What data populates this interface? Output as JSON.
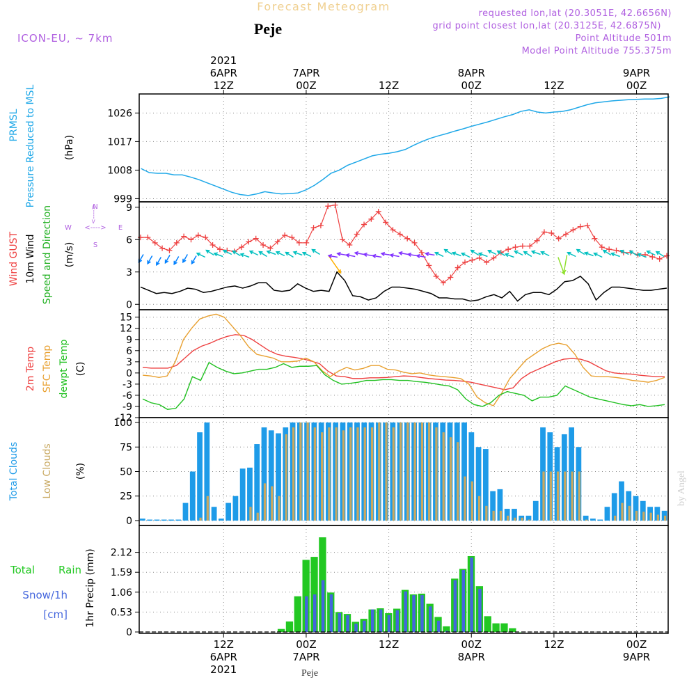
{
  "header": {
    "chart_title": "Forecast Meteogram",
    "location": "Peje",
    "model": "ICON-EU, ~ 7km",
    "requested_point": "requested lon,lat (20.3051E, 42.6656N)",
    "grid_point": "grid point closest lon,lat (20.3125E, 42.6875N)",
    "point_altitude": "Point Altitude 501m",
    "model_point_altitude": "Model Point Altitude 755.375m",
    "footer_location": "Peje",
    "credit": "by Angel"
  },
  "colors": {
    "pressure": "#1fa8e8",
    "gust": "#ee4040",
    "wind": "#000000",
    "wind_dir": "#20b020",
    "temp": "#ee4040",
    "sfc_temp": "#e8a030",
    "dewpt": "#20c020",
    "total_clouds": "#1e9be8",
    "low_clouds": "#c8a860",
    "rain": "#22c822",
    "snow": "#4466dd",
    "header_title": "#f0d090",
    "header_info": "#b060e0"
  },
  "chart_data": [
    {
      "type": "line",
      "panel": "pressure",
      "ylabels": [
        "PRMSL",
        "Pressure Reduced to MSL",
        "(hPa)"
      ],
      "yticks": [
        999,
        1008,
        1017,
        1026
      ],
      "ylim": [
        998,
        1032
      ],
      "x_hours": [
        0,
        1,
        2,
        3,
        4,
        5,
        6,
        7,
        8,
        9,
        10,
        11,
        12,
        13,
        14,
        15,
        16,
        17,
        18,
        19,
        20,
        21,
        22,
        23,
        24,
        25,
        26,
        27,
        28,
        29,
        30,
        31,
        32,
        33,
        34,
        35,
        36,
        37,
        38,
        39,
        40,
        41,
        42,
        43,
        44,
        45,
        46,
        47,
        48,
        49,
        50,
        51,
        52,
        53,
        54,
        55,
        56,
        57,
        58,
        59,
        60,
        61,
        62,
        63,
        64
      ],
      "values": [
        1008.5,
        1007.2,
        1007.0,
        1007.0,
        1006.5,
        1006.5,
        1005.8,
        1005.0,
        1004.0,
        1003.0,
        1002.0,
        1001.0,
        1000.3,
        1000.0,
        1000.5,
        1001.2,
        1000.8,
        1000.5,
        1000.6,
        1000.8,
        1001.8,
        1003.2,
        1005.0,
        1007.0,
        1008.0,
        1009.5,
        1010.5,
        1011.5,
        1012.5,
        1013.0,
        1013.3,
        1013.8,
        1014.5,
        1015.8,
        1017.0,
        1018.0,
        1018.8,
        1019.5,
        1020.3,
        1021.0,
        1021.8,
        1022.5,
        1023.2,
        1024.0,
        1024.8,
        1025.5,
        1026.5,
        1027.0,
        1026.3,
        1026.0,
        1026.3,
        1026.5,
        1027.0,
        1027.8,
        1028.6,
        1029.2,
        1029.5,
        1029.8,
        1030.0,
        1030.2,
        1030.3,
        1030.4,
        1030.4,
        1030.6,
        1031.1
      ]
    },
    {
      "type": "line",
      "panel": "wind",
      "ylabels": [
        "Wind GUST",
        "10m Wind",
        "(m/s)",
        "Speed and Direction"
      ],
      "compass": {
        "n": "N",
        "s": "S",
        "w": "W",
        "e": "E",
        "arrow": "<---->"
      },
      "yticks": [
        0,
        3,
        6,
        9
      ],
      "ylim": [
        -0.5,
        9.5
      ],
      "series": [
        {
          "name": "Wind GUST",
          "values": [
            6.2,
            6.2,
            5.7,
            5.2,
            5.0,
            5.7,
            6.3,
            6.0,
            6.4,
            6.2,
            5.5,
            5.1,
            5.0,
            4.9,
            5.3,
            5.8,
            6.1,
            5.5,
            5.2,
            5.8,
            6.4,
            6.2,
            5.7,
            5.7,
            7.1,
            7.3,
            9.1,
            9.2,
            6.0,
            5.5,
            6.5,
            7.4,
            7.9,
            8.6,
            7.6,
            6.9,
            6.5,
            6.1,
            5.7,
            4.8,
            3.6,
            2.6,
            2.0,
            2.5,
            3.4,
            3.9,
            4.1,
            4.3,
            3.9,
            4.3,
            4.8,
            5.1,
            5.3,
            5.4,
            5.4,
            5.9,
            6.7,
            6.6,
            6.1,
            6.5,
            6.9,
            7.2,
            7.3,
            6.1,
            5.3,
            5.1,
            5.0,
            4.8,
            4.8,
            4.6,
            4.6,
            4.4,
            4.2,
            4.5
          ]
        },
        {
          "name": "10m Wind",
          "values": [
            1.6,
            1.3,
            1.0,
            1.1,
            1.0,
            1.2,
            1.5,
            1.4,
            1.1,
            1.2,
            1.4,
            1.6,
            1.7,
            1.5,
            1.7,
            2.0,
            2.0,
            1.3,
            1.2,
            1.3,
            1.9,
            1.5,
            1.2,
            1.3,
            1.2,
            3.0,
            2.2,
            0.8,
            0.7,
            0.4,
            0.6,
            1.2,
            1.6,
            1.6,
            1.5,
            1.4,
            1.2,
            1.0,
            0.6,
            0.6,
            0.5,
            0.5,
            0.3,
            0.4,
            0.7,
            0.9,
            0.6,
            1.2,
            0.3,
            0.9,
            1.1,
            1.1,
            0.9,
            1.4,
            2.1,
            2.2,
            2.6,
            1.9,
            0.4,
            1.1,
            1.6,
            1.6,
            1.5,
            1.4,
            1.3,
            1.3,
            1.4,
            1.5
          ]
        }
      ],
      "direction_arrows": [
        {
          "color": "#0080ff",
          "count": 7
        },
        {
          "color": "#00c0c0",
          "count": 14
        },
        {
          "color": "#ffb000",
          "count": 1
        },
        {
          "color": "#8030ff",
          "count": 12
        },
        {
          "color": "#00c0c0",
          "count": 13
        },
        {
          "color": "#90e030",
          "count": 2
        },
        {
          "color": "#00c0c0",
          "count": 11
        }
      ]
    },
    {
      "type": "line",
      "panel": "temperature",
      "ylabels": [
        "2m Temp",
        "SFC Temp",
        "dewpt Temp",
        "(C)"
      ],
      "yticks": [
        -12,
        -9,
        -6,
        -3,
        0,
        3,
        6,
        9,
        12,
        15
      ],
      "ylim": [
        -12,
        17
      ],
      "series": [
        {
          "name": "2m Temp",
          "values": [
            1.5,
            1.3,
            1.3,
            1.3,
            2.0,
            4.0,
            6.0,
            7.2,
            8.0,
            9.0,
            9.8,
            10.3,
            10.1,
            9.0,
            7.5,
            6.0,
            5.0,
            4.5,
            4.2,
            3.8,
            3.2,
            2.5,
            0.5,
            -0.8,
            -1.0,
            -1.5,
            -1.5,
            -1.3,
            -1.3,
            -1.2,
            -1.0,
            -0.8,
            -0.9,
            -1.2,
            -1.5,
            -1.7,
            -1.9,
            -2.0,
            -2.2,
            -2.5,
            -3.0,
            -3.5,
            -4.0,
            -4.5,
            -4.0,
            -1.5,
            0.0,
            1.0,
            2.0,
            3.0,
            3.7,
            3.9,
            3.7,
            3.0,
            1.8,
            0.6,
            0.0,
            -0.2,
            -0.3,
            -0.6,
            -0.8,
            -1.0,
            -1.0
          ]
        },
        {
          "name": "SFC Temp",
          "values": [
            -0.6,
            -0.8,
            -1.2,
            -0.8,
            3.0,
            9.0,
            12.0,
            14.5,
            15.3,
            15.8,
            15.0,
            12.5,
            10.0,
            7.0,
            5.0,
            4.5,
            4.0,
            3.0,
            3.0,
            3.2,
            4.0,
            3.0,
            0.6,
            -1.0,
            0.5,
            1.5,
            0.8,
            1.2,
            2.0,
            2.0,
            1.0,
            0.8,
            0.2,
            -0.2,
            0.0,
            -0.5,
            -0.8,
            -1.0,
            -1.2,
            -1.5,
            -3.0,
            -6.5,
            -8.0,
            -8.8,
            -5.5,
            -1.5,
            1.0,
            3.5,
            5.0,
            6.5,
            7.5,
            8.0,
            7.5,
            5.0,
            1.5,
            -0.8,
            -1.0,
            -1.0,
            -1.2,
            -1.5,
            -2.0,
            -2.2,
            -2.5,
            -2.0,
            -1.2
          ]
        },
        {
          "name": "dewpt Temp",
          "values": [
            -7.0,
            -8.0,
            -8.5,
            -9.8,
            -9.5,
            -7.0,
            -1.0,
            -2.0,
            2.8,
            1.5,
            0.5,
            -0.2,
            0.0,
            0.5,
            1.0,
            1.0,
            1.5,
            2.5,
            1.5,
            1.8,
            1.8,
            2.0,
            -0.5,
            -2.0,
            -3.0,
            -2.8,
            -2.5,
            -2.0,
            -2.0,
            -1.8,
            -1.8,
            -2.0,
            -2.0,
            -2.3,
            -2.5,
            -2.8,
            -3.2,
            -3.5,
            -4.5,
            -7.0,
            -8.5,
            -9.0,
            -8.0,
            -6.0,
            -5.0,
            -5.5,
            -6.0,
            -7.5,
            -6.5,
            -6.5,
            -6.0,
            -3.5,
            -4.5,
            -5.5,
            -6.5,
            -7.0,
            -7.5,
            -8.0,
            -8.5,
            -8.8,
            -8.5,
            -9.0,
            -8.8,
            -8.5
          ]
        }
      ]
    },
    {
      "type": "bar",
      "panel": "clouds",
      "ylabels": [
        "Total Clouds",
        "Low Clouds",
        "(%)"
      ],
      "yticks": [
        0,
        25,
        50,
        75,
        100
      ],
      "ylim": [
        -5,
        105
      ],
      "series": [
        {
          "name": "Total Clouds",
          "values": [
            2,
            1,
            1,
            1,
            1,
            1,
            18,
            50,
            90,
            100,
            14,
            2,
            18,
            25,
            53,
            54,
            78,
            95,
            92,
            89,
            95,
            100,
            100,
            100,
            100,
            100,
            100,
            100,
            100,
            100,
            100,
            100,
            100,
            100,
            100,
            100,
            100,
            100,
            100,
            100,
            100,
            100,
            100,
            100,
            100,
            100,
            90,
            75,
            73,
            30,
            32,
            12,
            12,
            5,
            5,
            20,
            95,
            90,
            75,
            88,
            95,
            75,
            5,
            2,
            1,
            14,
            28,
            40,
            30,
            25,
            20,
            14,
            14,
            10
          ]
        },
        {
          "name": "Low Clouds",
          "values": [
            0,
            0,
            0,
            0,
            0,
            0,
            0,
            0,
            3,
            25,
            0,
            0,
            0,
            0,
            0,
            14,
            8,
            38,
            35,
            25,
            88,
            95,
            100,
            100,
            95,
            90,
            95,
            95,
            92,
            95,
            95,
            95,
            95,
            100,
            100,
            95,
            100,
            100,
            100,
            100,
            100,
            95,
            90,
            85,
            80,
            45,
            40,
            25,
            15,
            10,
            10,
            5,
            3,
            3,
            1,
            0,
            50,
            50,
            50,
            50,
            50,
            50,
            1,
            0,
            0,
            0,
            5,
            18,
            15,
            10,
            9,
            8,
            6,
            5
          ]
        }
      ]
    },
    {
      "type": "bar",
      "panel": "precipitation",
      "ylabels": [
        "Total",
        "Rain",
        "Snow/1h",
        "[cm]",
        "1hr Precip (mm)"
      ],
      "yticks": [
        "0",
        "0.53",
        "1.06",
        "1.59",
        "2.12"
      ],
      "ylim": [
        0,
        2.65
      ],
      "series": [
        {
          "name": "Total Rain",
          "first_hour": 17,
          "values": [
            0.08,
            0.28,
            0.95,
            1.92,
            2.0,
            2.52,
            1.05,
            0.53,
            0.48,
            0.27,
            0.35,
            0.6,
            0.63,
            0.5,
            0.62,
            1.12,
            1.0,
            1.02,
            0.75,
            0.4,
            0.15,
            1.42,
            1.68,
            2.02,
            1.22,
            0.42,
            0.23,
            0.23,
            0.1,
            0.0
          ]
        },
        {
          "name": "Snow/1h",
          "first_hour": 17,
          "values": [
            0,
            0,
            0,
            0.95,
            1.0,
            1.38,
            1.0,
            0.5,
            0.45,
            0.22,
            0.3,
            0.6,
            0.6,
            0.45,
            0.58,
            1.08,
            0.98,
            0.98,
            0.68,
            0.3,
            0.03,
            1.38,
            1.65,
            1.98,
            1.15,
            0,
            0,
            0,
            0,
            0
          ]
        }
      ]
    }
  ],
  "time_axis": {
    "hours_total": 64,
    "ticks_top": [
      {
        "hour": 10,
        "lines": [
          "2021",
          "6APR",
          "12Z"
        ]
      },
      {
        "hour": 20,
        "lines": [
          "7APR",
          "00Z"
        ]
      },
      {
        "hour": 30,
        "lines": [
          "12Z"
        ]
      },
      {
        "hour": 40,
        "lines": [
          "8APR",
          "00Z"
        ]
      },
      {
        "hour": 50,
        "lines": [
          "12Z"
        ]
      },
      {
        "hour": 60,
        "lines": [
          "9APR",
          "00Z"
        ]
      }
    ],
    "ticks_bottom": [
      {
        "hour": 10,
        "lines": [
          "12Z",
          "6APR",
          "2021"
        ]
      },
      {
        "hour": 20,
        "lines": [
          "00Z",
          "7APR"
        ]
      },
      {
        "hour": 30,
        "lines": [
          "12Z"
        ]
      },
      {
        "hour": 40,
        "lines": [
          "00Z",
          "8APR"
        ]
      },
      {
        "hour": 50,
        "lines": [
          "12Z"
        ]
      },
      {
        "hour": 60,
        "lines": [
          "00Z",
          "9APR"
        ]
      }
    ]
  }
}
